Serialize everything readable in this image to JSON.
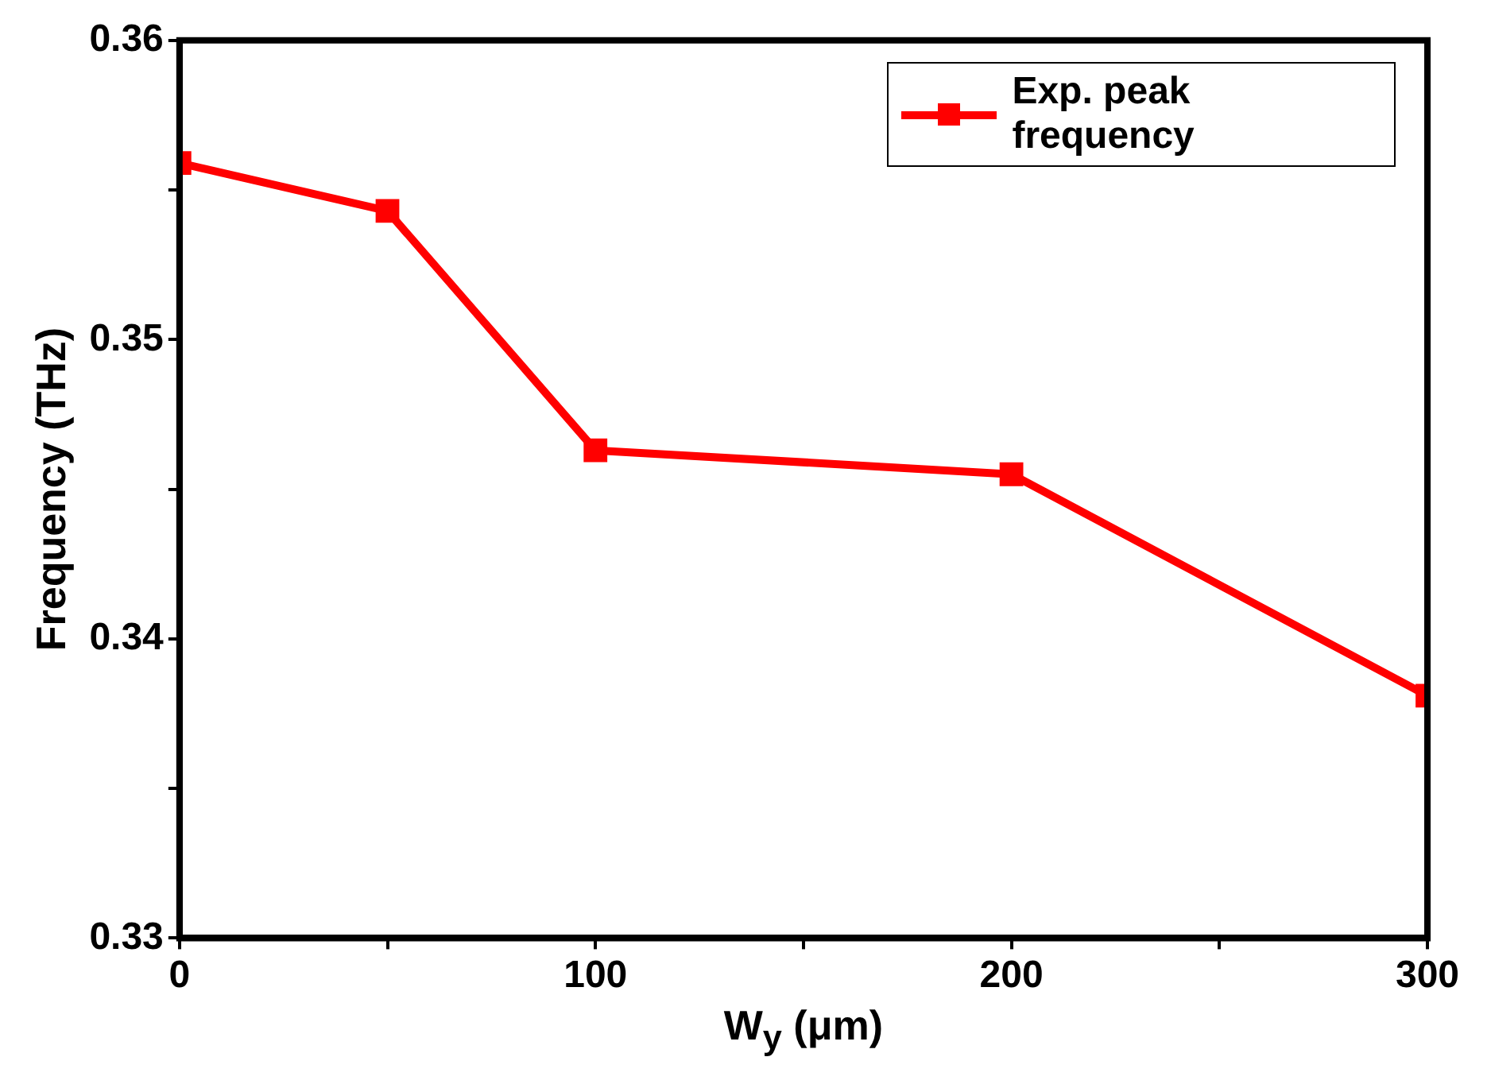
{
  "chart_data": {
    "type": "line",
    "xlabel": "W$_{y}$ (μm)",
    "ylabel": "Frequency (THz)",
    "x": [
      0,
      50,
      100,
      200,
      300
    ],
    "series": [
      {
        "name": "Exp. peak frequency",
        "color": "#ff0000",
        "values": [
          0.3559,
          0.3543,
          0.3463,
          0.3455,
          0.3381
        ]
      }
    ],
    "xlim": [
      0,
      300
    ],
    "xticks": [
      0,
      {
        "value": 50,
        "label": null
      },
      100,
      {
        "value": 150,
        "label": null
      },
      200,
      {
        "value": 250,
        "label": null
      },
      300
    ],
    "ylim": [
      0.33,
      0.36
    ],
    "yticks": [
      0.33,
      {
        "value": 0.335,
        "label": null
      },
      0.34,
      {
        "value": 0.345,
        "label": null
      },
      0.35,
      {
        "value": 0.355,
        "label": null
      },
      0.36
    ],
    "legend": "top right",
    "marker": "square",
    "line_style": "solid",
    "grid": false
  }
}
